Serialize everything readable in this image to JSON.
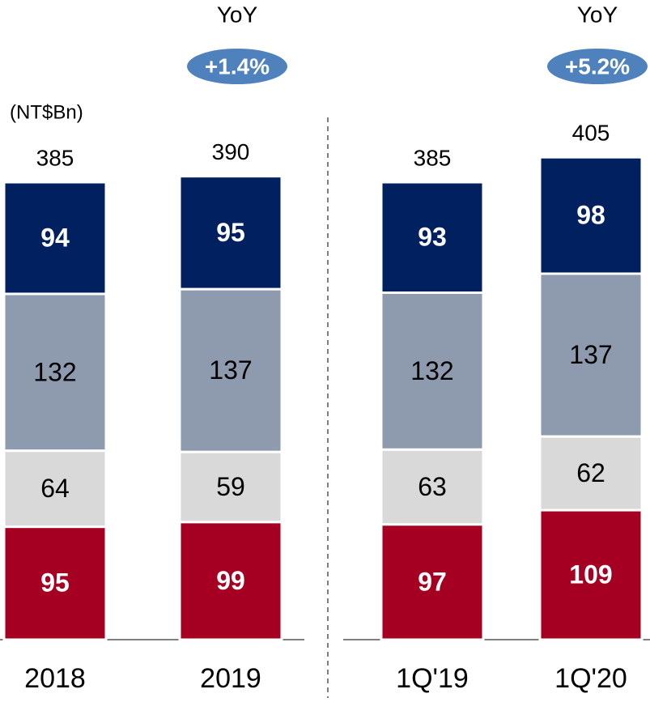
{
  "chart_data": {
    "type": "stacked-bar",
    "unit_label": "(NT$Bn)",
    "categories": [
      "2018",
      "2019",
      "1Q'19",
      "1Q'20"
    ],
    "series": [
      {
        "color": "#a50021",
        "label_color": "#ffffff",
        "label_bold": true,
        "values": [
          95,
          99,
          97,
          109
        ]
      },
      {
        "color": "#d9d9d9",
        "label_color": "#000000",
        "label_bold": false,
        "values": [
          64,
          59,
          63,
          62
        ]
      },
      {
        "color": "#8e9aad",
        "label_color": "#000000",
        "label_bold": false,
        "values": [
          132,
          137,
          132,
          137
        ]
      },
      {
        "color": "#002060",
        "label_color": "#ffffff",
        "label_bold": true,
        "values": [
          94,
          95,
          93,
          98
        ]
      }
    ],
    "totals": [
      385,
      390,
      385,
      405
    ],
    "annotations": [
      {
        "title": "YoY",
        "text": "+1.4%"
      },
      {
        "title": "YoY",
        "text": "+5.2%"
      }
    ],
    "annotation_color": "#4f81bd"
  }
}
